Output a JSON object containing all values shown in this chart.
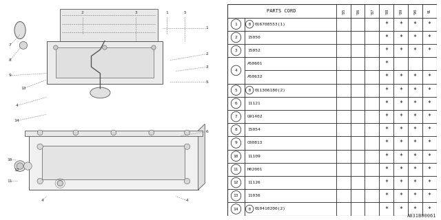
{
  "watermark": "A031B00061",
  "table_header_years": [
    "'85",
    "'86",
    "'87",
    "'88",
    "'89",
    "'90",
    "9\n1"
  ],
  "rows": [
    {
      "num": "1",
      "circle_b": true,
      "part": "016708553(1)",
      "cols": [
        0,
        0,
        0,
        1,
        1,
        1,
        1
      ]
    },
    {
      "num": "2",
      "circle_b": false,
      "part": "15050",
      "cols": [
        0,
        0,
        0,
        1,
        1,
        1,
        1
      ]
    },
    {
      "num": "3",
      "circle_b": false,
      "part": "15052",
      "cols": [
        0,
        0,
        0,
        1,
        1,
        1,
        1
      ]
    },
    {
      "num": "4",
      "circle_b": false,
      "part": "A50601",
      "cols": [
        0,
        0,
        0,
        1,
        0,
        0,
        0
      ],
      "sub": true
    },
    {
      "num": "4",
      "circle_b": false,
      "part": "A50632",
      "cols": [
        0,
        0,
        0,
        1,
        1,
        1,
        1
      ],
      "sub2": true
    },
    {
      "num": "5",
      "circle_b": true,
      "part": "011306180(2)",
      "cols": [
        0,
        0,
        0,
        1,
        1,
        1,
        1
      ]
    },
    {
      "num": "6",
      "circle_b": false,
      "part": "11121",
      "cols": [
        0,
        0,
        0,
        1,
        1,
        1,
        1
      ]
    },
    {
      "num": "7",
      "circle_b": false,
      "part": "G91402",
      "cols": [
        0,
        0,
        0,
        1,
        1,
        1,
        1
      ]
    },
    {
      "num": "8",
      "circle_b": false,
      "part": "15054",
      "cols": [
        0,
        0,
        0,
        1,
        1,
        1,
        1
      ]
    },
    {
      "num": "9",
      "circle_b": false,
      "part": "C00813",
      "cols": [
        0,
        0,
        0,
        1,
        1,
        1,
        1
      ]
    },
    {
      "num": "10",
      "circle_b": false,
      "part": "11109",
      "cols": [
        0,
        0,
        0,
        1,
        1,
        1,
        1
      ]
    },
    {
      "num": "11",
      "circle_b": false,
      "part": "H02001",
      "cols": [
        0,
        0,
        0,
        1,
        1,
        1,
        1
      ]
    },
    {
      "num": "12",
      "circle_b": false,
      "part": "11126",
      "cols": [
        0,
        0,
        0,
        1,
        1,
        1,
        1
      ]
    },
    {
      "num": "13",
      "circle_b": false,
      "part": "11036",
      "cols": [
        0,
        0,
        0,
        1,
        1,
        1,
        1
      ]
    },
    {
      "num": "14",
      "circle_b": true,
      "part": "010410200(2)",
      "cols": [
        0,
        0,
        0,
        1,
        1,
        1,
        1
      ]
    }
  ],
  "bg_color": "#ffffff",
  "line_color": "#333333",
  "text_color": "#111111"
}
